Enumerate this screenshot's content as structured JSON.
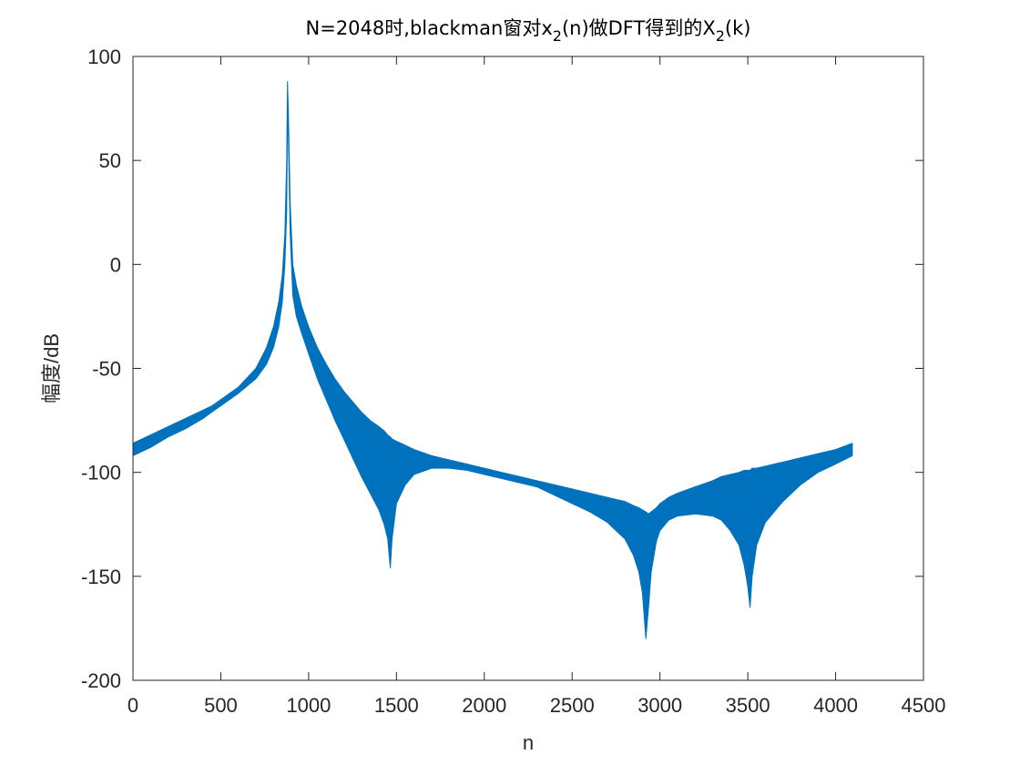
{
  "chart_data": {
    "type": "line",
    "title": "N=2048时,blackman窗对x",
    "title_sub1": "2",
    "title_mid": "(n)做DFT得到的X",
    "title_sub2": "2",
    "title_end": "(k)",
    "xlabel": "n",
    "ylabel": "幅度/dB",
    "xlim": [
      0,
      4500
    ],
    "ylim": [
      -200,
      100
    ],
    "xticks": [
      0,
      500,
      1000,
      1500,
      2000,
      2500,
      3000,
      3500,
      4000,
      4500
    ],
    "yticks": [
      -200,
      -150,
      -100,
      -50,
      0,
      50,
      100
    ],
    "grid": false,
    "series": [
      {
        "color": "#0072BD",
        "x": [
          0,
          100,
          200,
          300,
          400,
          450,
          500,
          600,
          700,
          760,
          800,
          830,
          850,
          865,
          875,
          880,
          885,
          895,
          910,
          930,
          960,
          1000,
          1050,
          1100,
          1150,
          1200,
          1250,
          1300,
          1350,
          1400,
          1430,
          1450,
          1465,
          1475,
          1500,
          1550,
          1600,
          1700,
          1800,
          1900,
          2000,
          2100,
          2200,
          2300,
          2400,
          2500,
          2600,
          2700,
          2750,
          2800,
          2850,
          2880,
          2900,
          2920,
          2935,
          2950,
          2980,
          3000,
          3050,
          3100,
          3200,
          3300,
          3350,
          3400,
          3450,
          3480,
          3500,
          3513,
          3525,
          3550,
          3600,
          3700,
          3800,
          3900,
          4000,
          4095
        ],
        "upper": [
          -86,
          -82,
          -78,
          -74,
          -70,
          -68,
          -65,
          -59,
          -50,
          -40,
          -30,
          -18,
          -5,
          15,
          50,
          88,
          72,
          30,
          0,
          -10,
          -20,
          -30,
          -40,
          -48,
          -55,
          -61,
          -66,
          -71,
          -75,
          -78,
          -80,
          -82,
          -83,
          -84,
          -85,
          -87,
          -89,
          -92,
          -94,
          -96,
          -98,
          -100,
          -102,
          -104,
          -106,
          -108,
          -110,
          -112,
          -113,
          -114,
          -116,
          -117,
          -118,
          -119,
          -120,
          -119,
          -117,
          -115,
          -112,
          -110,
          -107,
          -104,
          -102,
          -101,
          -100,
          -99,
          -99,
          -99,
          -98,
          -98,
          -97,
          -95,
          -93,
          -91,
          -89,
          -86
        ],
        "lower": [
          -92,
          -88,
          -83,
          -79,
          -74,
          -71,
          -68,
          -62,
          -55,
          -48,
          -40,
          -30,
          -18,
          0,
          25,
          72,
          60,
          15,
          -15,
          -25,
          -33,
          -43,
          -55,
          -65,
          -75,
          -84,
          -93,
          -102,
          -110,
          -118,
          -125,
          -132,
          -146,
          -132,
          -115,
          -106,
          -101,
          -98,
          -98,
          -99,
          -101,
          -103,
          -105,
          -107,
          -111,
          -115,
          -119,
          -124,
          -128,
          -132,
          -140,
          -148,
          -158,
          -180,
          -165,
          -148,
          -133,
          -128,
          -123,
          -121,
          -120,
          -121,
          -123,
          -128,
          -135,
          -145,
          -155,
          -165,
          -150,
          -135,
          -124,
          -114,
          -106,
          -100,
          -96,
          -92
        ]
      }
    ]
  }
}
